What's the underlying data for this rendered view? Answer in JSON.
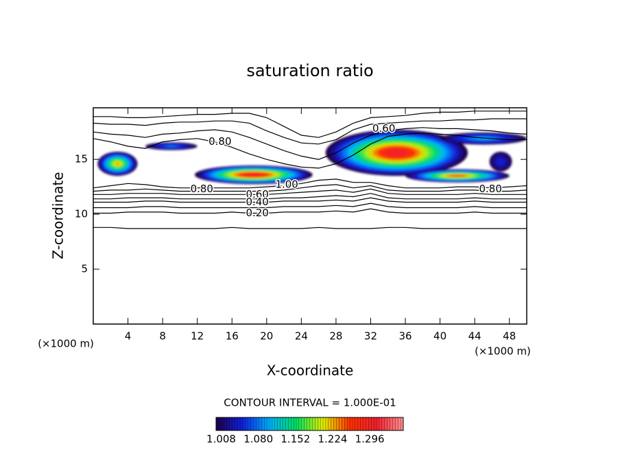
{
  "chart_data": {
    "type": "contour",
    "title": "saturation ratio",
    "xlabel": "X-coordinate",
    "ylabel": "Z-coordinate",
    "x_unit": "(×1000 m)",
    "y_unit": "(×1000 m)",
    "xlim": [
      0,
      50
    ],
    "ylim": [
      0,
      19.7
    ],
    "xticks": [
      4,
      8,
      12,
      16,
      20,
      24,
      28,
      32,
      36,
      40,
      44,
      48
    ],
    "yticks": [
      5,
      10,
      15
    ],
    "contour_x": [
      0,
      2,
      4,
      6,
      8,
      10,
      12,
      14,
      16,
      18,
      20,
      22,
      24,
      26,
      28,
      30,
      32,
      34,
      36,
      38,
      40,
      42,
      44,
      46,
      48,
      50
    ],
    "contours": [
      [
        8.8,
        8.8,
        8.7,
        8.7,
        8.7,
        8.7,
        8.7,
        8.7,
        8.8,
        8.7,
        8.7,
        8.7,
        8.7,
        8.8,
        8.7,
        8.7,
        8.7,
        8.8,
        8.8,
        8.7,
        8.7,
        8.7,
        8.7,
        8.7,
        8.7,
        8.7
      ],
      [
        10.1,
        10.1,
        10.2,
        10.2,
        10.2,
        10.1,
        10.1,
        10.1,
        10.2,
        10.1,
        10.1,
        10.2,
        10.2,
        10.2,
        10.3,
        10.2,
        10.5,
        10.2,
        10.1,
        10.1,
        10.1,
        10.1,
        10.2,
        10.1,
        10.1,
        10.1
      ],
      [
        10.6,
        10.6,
        10.6,
        10.7,
        10.7,
        10.6,
        10.6,
        10.6,
        10.6,
        10.6,
        10.6,
        10.7,
        10.7,
        10.7,
        10.8,
        10.7,
        11.0,
        10.7,
        10.6,
        10.6,
        10.6,
        10.6,
        10.7,
        10.6,
        10.6,
        10.6
      ],
      [
        11.1,
        11.1,
        11.1,
        11.2,
        11.2,
        11.1,
        11.1,
        11.1,
        11.1,
        11.1,
        11.1,
        11.2,
        11.2,
        11.2,
        11.3,
        11.2,
        11.5,
        11.2,
        11.1,
        11.1,
        11.1,
        11.1,
        11.2,
        11.1,
        11.1,
        11.1
      ],
      [
        11.4,
        11.4,
        11.5,
        11.5,
        11.5,
        11.4,
        11.4,
        11.4,
        11.4,
        11.4,
        11.4,
        11.5,
        11.5,
        11.6,
        11.7,
        11.6,
        11.9,
        11.5,
        11.4,
        11.4,
        11.4,
        11.4,
        11.5,
        11.4,
        11.4,
        11.4
      ],
      [
        11.8,
        11.8,
        11.9,
        11.9,
        11.9,
        11.8,
        11.8,
        11.8,
        11.8,
        11.8,
        11.8,
        11.9,
        12.0,
        12.1,
        12.2,
        12.0,
        12.3,
        11.9,
        11.8,
        11.8,
        11.8,
        11.8,
        11.9,
        11.8,
        11.8,
        11.8
      ],
      [
        12.1,
        12.2,
        12.2,
        12.3,
        12.2,
        12.1,
        12.1,
        12.1,
        12.1,
        12.1,
        12.1,
        12.2,
        12.4,
        12.6,
        12.7,
        12.4,
        12.6,
        12.2,
        12.1,
        12.1,
        12.1,
        12.2,
        12.2,
        12.1,
        12.1,
        12.2
      ],
      [
        12.4,
        12.6,
        12.8,
        12.7,
        12.5,
        12.4,
        12.4,
        12.4,
        12.4,
        12.4,
        12.5,
        12.6,
        12.8,
        13.1,
        13.2,
        12.9,
        12.9,
        12.6,
        12.4,
        12.4,
        12.4,
        12.5,
        12.5,
        12.4,
        12.5,
        12.6
      ],
      [
        18.9,
        18.9,
        18.8,
        18.8,
        18.9,
        19.0,
        19.1,
        19.1,
        19.2,
        19.2,
        18.8,
        18.0,
        17.2,
        17.0,
        17.5,
        18.3,
        18.8,
        18.9,
        19.0,
        19.2,
        19.3,
        19.3,
        19.4,
        19.4,
        19.4,
        19.4
      ],
      [
        18.3,
        18.2,
        18.2,
        18.1,
        18.3,
        18.4,
        18.4,
        18.5,
        18.5,
        18.3,
        17.6,
        17.0,
        16.5,
        16.4,
        16.8,
        17.7,
        18.2,
        18.3,
        18.4,
        18.5,
        18.5,
        18.6,
        18.6,
        18.7,
        18.7,
        18.7
      ],
      [
        17.5,
        17.3,
        17.2,
        17.0,
        17.3,
        17.4,
        17.6,
        17.7,
        17.5,
        17.0,
        16.4,
        15.8,
        15.3,
        15.0,
        15.6,
        16.5,
        17.2,
        17.6,
        17.8,
        17.9,
        17.8,
        17.8,
        17.7,
        17.6,
        17.4,
        17.3
      ],
      [
        16.9,
        16.6,
        16.2,
        16.0,
        16.6,
        16.8,
        16.9,
        16.6,
        16.1,
        15.5,
        15.0,
        14.6,
        14.3,
        14.2,
        14.6,
        15.4,
        16.4,
        17.1,
        17.3,
        17.4,
        17.3,
        17.2,
        17.0,
        16.9,
        16.8,
        16.8
      ]
    ],
    "regions": [
      {
        "cx": 18.5,
        "cz": 13.6,
        "rx": 6.8,
        "rz": 0.85,
        "peak": 1.3
      },
      {
        "cx": 35,
        "cz": 15.6,
        "rx": 8.2,
        "rz": 2.1,
        "peak": 1.3
      },
      {
        "cx": 45,
        "cz": 16.9,
        "rx": 5,
        "rz": 0.55,
        "peak": 1.1
      },
      {
        "cx": 42,
        "cz": 13.5,
        "rx": 6,
        "rz": 0.6,
        "peak": 1.25
      },
      {
        "cx": 2.8,
        "cz": 14.6,
        "rx": 2.3,
        "rz": 1.1,
        "peak": 1.22
      },
      {
        "cx": 9,
        "cz": 16.2,
        "rx": 3,
        "rz": 0.35,
        "peak": 1.08
      },
      {
        "cx": 47,
        "cz": 14.8,
        "rx": 1.3,
        "rz": 0.9,
        "peak": 1.05
      }
    ],
    "contour_labels": [
      {
        "text": "0.80",
        "x": 13.3,
        "z": 16.6
      },
      {
        "text": "0.80",
        "x": 11.2,
        "z": 12.3
      },
      {
        "text": "1.00",
        "x": 21,
        "z": 12.7
      },
      {
        "text": "0.60",
        "x": 17.6,
        "z": 11.8
      },
      {
        "text": "0.40",
        "x": 17.6,
        "z": 11.1
      },
      {
        "text": "0.20",
        "x": 17.6,
        "z": 10.1
      },
      {
        "text": "0.80",
        "x": 44.5,
        "z": 12.3
      },
      {
        "text": "0.60",
        "x": 32.2,
        "z": 17.8
      }
    ],
    "contour_interval": "CONTOUR INTERVAL = 1.000E-01",
    "colormap": [
      "#200048",
      "#1020e0",
      "#00b0ff",
      "#00e060",
      "#e0f000",
      "#ff3000",
      "#f02030",
      "#ff9090"
    ],
    "colorbar": {
      "range": [
        0.998,
        1.361
      ],
      "ticks": [
        1.008,
        {
          "value": 1.08,
          "label": "1.080"
        },
        1.152,
        1.224,
        1.296
      ]
    }
  }
}
